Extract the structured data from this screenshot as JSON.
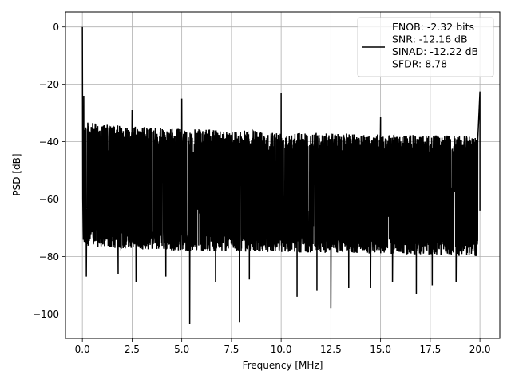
{
  "chart_data": {
    "type": "line",
    "title": "",
    "xlabel": "Frequency [MHz]",
    "ylabel": "PSD [dB]",
    "xlim": [
      -0.85,
      21.0
    ],
    "ylim": [
      -108.5,
      5.2
    ],
    "xticks": [
      0.0,
      2.5,
      5.0,
      7.5,
      10.0,
      12.5,
      15.0,
      17.5,
      20.0
    ],
    "xtick_labels": [
      "0.0",
      "2.5",
      "5.0",
      "7.5",
      "10.0",
      "12.5",
      "15.0",
      "17.5",
      "20.0"
    ],
    "yticks": [
      0,
      -20,
      -40,
      -60,
      -80,
      -100
    ],
    "ytick_labels": [
      "0",
      "−20",
      "−40",
      "−60",
      "−80",
      "−100"
    ],
    "grid": true,
    "legend_position": "top-right",
    "legend_lines": [
      "ENOB: -2.32 bits",
      "SNR: -12.16 dB",
      "SINAD: -12.22 dB",
      "SFDR: 8.78"
    ],
    "series": [
      {
        "color": "#000000",
        "noise_band_upper": {
          "x": [
            0.05,
            1.0,
            5.0,
            10.0,
            15.0,
            19.9
          ],
          "y": [
            -33,
            -34,
            -35.5,
            -36.5,
            -37.5,
            -38
          ]
        },
        "noise_band_lower": {
          "x": [
            0.05,
            1.0,
            5.0,
            10.0,
            15.0,
            19.9
          ],
          "y": [
            -76,
            -77,
            -78,
            -78.5,
            -79,
            -80
          ]
        },
        "peaks": [
          {
            "x": 0.0,
            "y": 0.0
          },
          {
            "x": 0.07,
            "y": -24
          },
          {
            "x": 2.5,
            "y": -29
          },
          {
            "x": 5.0,
            "y": -25
          },
          {
            "x": 10.0,
            "y": -23
          },
          {
            "x": 15.0,
            "y": -31.5
          },
          {
            "x": 20.0,
            "y": -22.5
          }
        ],
        "dips": [
          {
            "x": 0.2,
            "y": -87
          },
          {
            "x": 1.8,
            "y": -86
          },
          {
            "x": 2.7,
            "y": -89
          },
          {
            "x": 4.2,
            "y": -87
          },
          {
            "x": 5.4,
            "y": -103.5
          },
          {
            "x": 6.7,
            "y": -89
          },
          {
            "x": 7.9,
            "y": -103
          },
          {
            "x": 8.4,
            "y": -88
          },
          {
            "x": 10.8,
            "y": -94
          },
          {
            "x": 11.8,
            "y": -92
          },
          {
            "x": 12.5,
            "y": -98
          },
          {
            "x": 13.4,
            "y": -91
          },
          {
            "x": 14.5,
            "y": -91
          },
          {
            "x": 15.6,
            "y": -89
          },
          {
            "x": 16.8,
            "y": -93
          },
          {
            "x": 17.6,
            "y": -90
          },
          {
            "x": 18.8,
            "y": -89
          }
        ]
      }
    ]
  }
}
